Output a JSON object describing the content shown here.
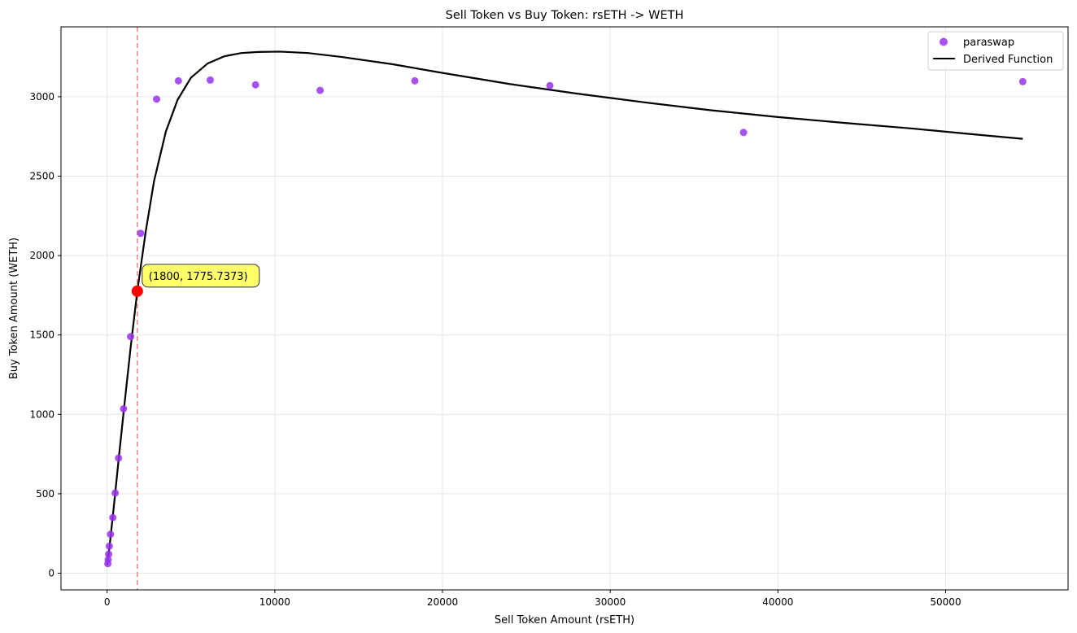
{
  "chart_data": {
    "type": "scatter",
    "title": "Sell Token vs Buy Token: rsETH -> WETH",
    "xlabel": "Sell Token Amount (rsETH)",
    "ylabel": "Buy Token Amount (WETH)",
    "xlim": [
      -2750,
      57300
    ],
    "ylim": [
      -105,
      3440
    ],
    "xticks": [
      0,
      10000,
      20000,
      30000,
      40000,
      50000
    ],
    "yticks": [
      0,
      500,
      1000,
      1500,
      2000,
      2500,
      3000
    ],
    "grid": true,
    "legend_position": "top-right",
    "series": [
      {
        "name": "paraswap",
        "kind": "scatter",
        "color": "#9933ee",
        "points": [
          [
            40,
            60
          ],
          [
            60,
            85
          ],
          [
            90,
            120
          ],
          [
            130,
            170
          ],
          [
            200,
            245
          ],
          [
            340,
            350
          ],
          [
            480,
            505
          ],
          [
            680,
            725
          ],
          [
            980,
            1035
          ],
          [
            1400,
            1490
          ],
          [
            2000,
            2140
          ],
          [
            2950,
            2985
          ],
          [
            4250,
            3100
          ],
          [
            6150,
            3105
          ],
          [
            8850,
            3075
          ],
          [
            12700,
            3040
          ],
          [
            18350,
            3100
          ],
          [
            26400,
            3070
          ],
          [
            37950,
            2775
          ],
          [
            54600,
            3095
          ]
        ]
      },
      {
        "name": "Derived Function",
        "kind": "line",
        "color": "#000000",
        "points": [
          [
            0,
            50
          ],
          [
            150,
            175
          ],
          [
            400,
            420
          ],
          [
            700,
            730
          ],
          [
            1000,
            1030
          ],
          [
            1400,
            1420
          ],
          [
            1800,
            1775.7373
          ],
          [
            2300,
            2150
          ],
          [
            2800,
            2470
          ],
          [
            3500,
            2780
          ],
          [
            4200,
            2980
          ],
          [
            5000,
            3120
          ],
          [
            6000,
            3210
          ],
          [
            7000,
            3255
          ],
          [
            8000,
            3275
          ],
          [
            9000,
            3282
          ],
          [
            10300,
            3284
          ],
          [
            12000,
            3275
          ],
          [
            14000,
            3250
          ],
          [
            17000,
            3205
          ],
          [
            20000,
            3150
          ],
          [
            24000,
            3080
          ],
          [
            28000,
            3020
          ],
          [
            32000,
            2965
          ],
          [
            36000,
            2915
          ],
          [
            40000,
            2872
          ],
          [
            44000,
            2835
          ],
          [
            48000,
            2800
          ],
          [
            52000,
            2760
          ],
          [
            54600,
            2735
          ]
        ]
      }
    ],
    "vline": {
      "x": 1800,
      "color": "#f08080"
    },
    "highlight": {
      "x": 1800,
      "y": 1775.7373,
      "color": "#ff0000"
    },
    "annotation": {
      "text": "(1800, 1775.7373)",
      "bg": "#ffff44"
    }
  }
}
